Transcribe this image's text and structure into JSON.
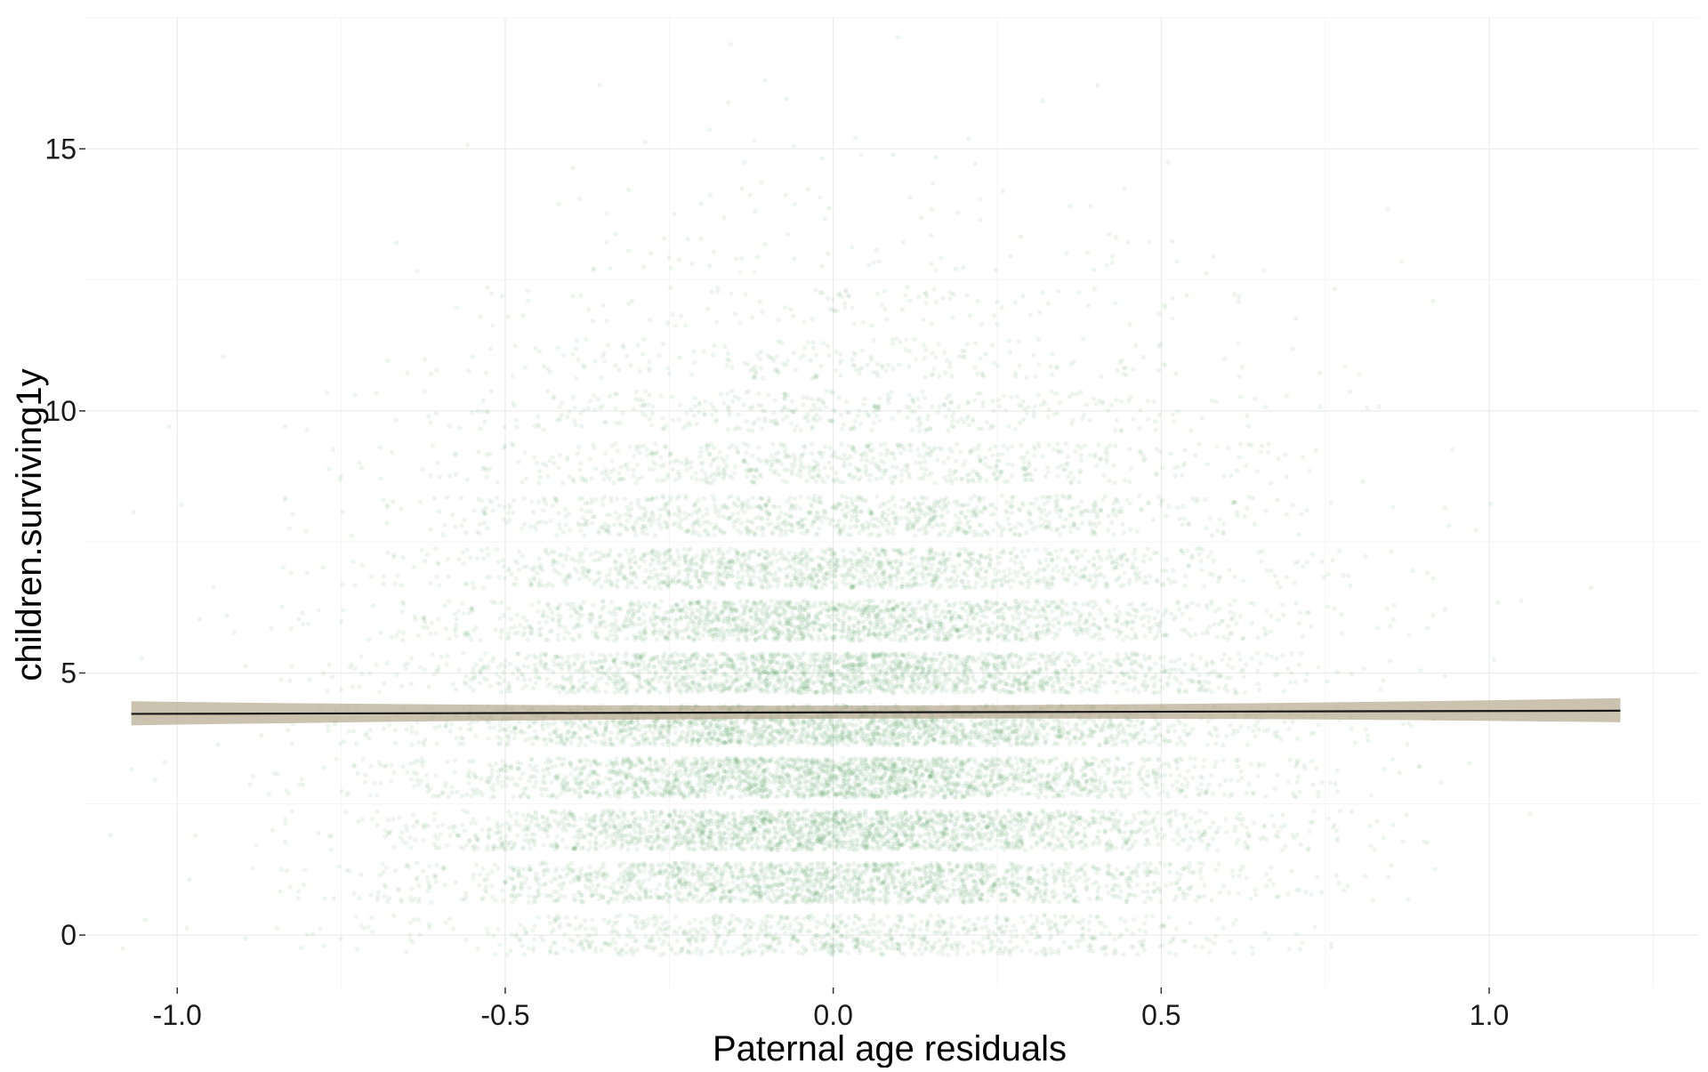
{
  "chart_data": {
    "type": "scatter",
    "title": "",
    "xlabel": "Paternal age residuals",
    "ylabel": "children.surviving1y",
    "xlim": [
      -1.14,
      1.32
    ],
    "ylim": [
      -1.0,
      17.5
    ],
    "x_ticks": [
      -1.0,
      -0.5,
      0.0,
      0.5,
      1.0
    ],
    "x_tick_labels": [
      "-1.0",
      "-0.5",
      "0.0",
      "0.5",
      "1.0"
    ],
    "y_ticks": [
      0,
      5,
      10,
      15
    ],
    "y_tick_labels": [
      "0",
      "5",
      "10",
      "15"
    ],
    "grid": true,
    "legend": "none",
    "point_color": "#4e9a5a",
    "fit_line_color": "#1a1a1a",
    "ci_band_color": "#b5a88f",
    "points_note": "jittered counts 0-17 per integer value; density highest near x=0 and counts 0-4",
    "count_distribution": [
      {
        "count": 0,
        "n": 900
      },
      {
        "count": 1,
        "n": 1800
      },
      {
        "count": 2,
        "n": 2200
      },
      {
        "count": 3,
        "n": 2300
      },
      {
        "count": 4,
        "n": 2300
      },
      {
        "count": 5,
        "n": 2000
      },
      {
        "count": 6,
        "n": 1700
      },
      {
        "count": 7,
        "n": 1300
      },
      {
        "count": 8,
        "n": 950
      },
      {
        "count": 9,
        "n": 650
      },
      {
        "count": 10,
        "n": 400
      },
      {
        "count": 11,
        "n": 230
      },
      {
        "count": 12,
        "n": 120
      },
      {
        "count": 13,
        "n": 60
      },
      {
        "count": 14,
        "n": 30
      },
      {
        "count": 15,
        "n": 15
      },
      {
        "count": 16,
        "n": 6
      },
      {
        "count": 17,
        "n": 2
      }
    ],
    "x_spread_sd": 0.3,
    "fit_line": {
      "x": [
        -1.07,
        1.2
      ],
      "y": [
        4.22,
        4.28
      ],
      "ci_lower": [
        4.0,
        4.06
      ],
      "ci_upper": [
        4.46,
        4.52
      ]
    }
  }
}
